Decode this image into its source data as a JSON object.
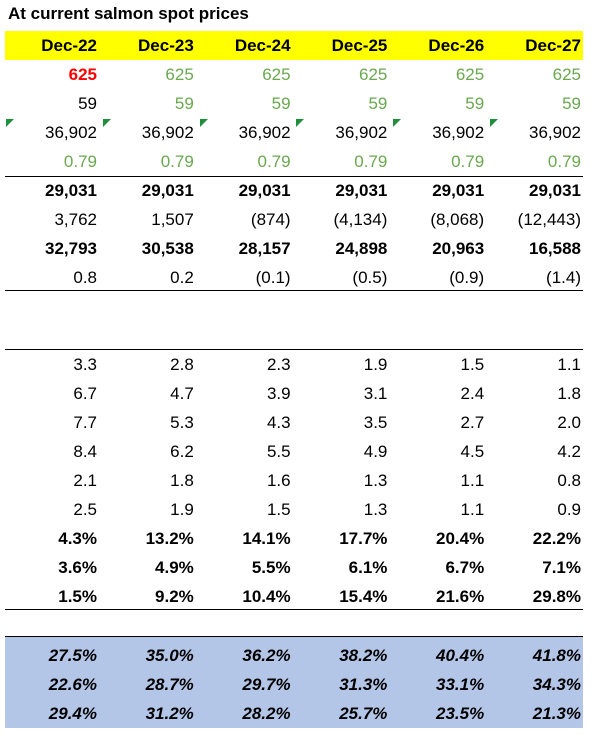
{
  "title": "At current salmon spot prices",
  "header": [
    "Dec-22",
    "Dec-23",
    "Dec-24",
    "Dec-25",
    "Dec-26",
    "Dec-27"
  ],
  "sections": [
    {
      "rows": [
        [
          "625",
          "625",
          "625",
          "625",
          "625",
          "625"
        ],
        [
          "59",
          "59",
          "59",
          "59",
          "59",
          "59"
        ],
        [
          "36,902",
          "36,902",
          "36,902",
          "36,902",
          "36,902",
          "36,902"
        ],
        [
          "0.79",
          "0.79",
          "0.79",
          "0.79",
          "0.79",
          "0.79"
        ]
      ]
    },
    {
      "rows": [
        [
          "29,031",
          "29,031",
          "29,031",
          "29,031",
          "29,031",
          "29,031"
        ],
        [
          "3,762",
          "1,507",
          "(874)",
          "(4,134)",
          "(8,068)",
          "(12,443)"
        ],
        [
          "32,793",
          "30,538",
          "28,157",
          "24,898",
          "20,963",
          "16,588"
        ],
        [
          "0.8",
          "0.2",
          "(0.1)",
          "(0.5)",
          "(0.9)",
          "(1.4)"
        ]
      ]
    },
    {
      "rows": [
        [
          "3.3",
          "2.8",
          "2.3",
          "1.9",
          "1.5",
          "1.1"
        ],
        [
          "6.7",
          "4.7",
          "3.9",
          "3.1",
          "2.4",
          "1.8"
        ],
        [
          "7.7",
          "5.3",
          "4.3",
          "3.5",
          "2.7",
          "2.0"
        ],
        [
          "8.4",
          "6.2",
          "5.5",
          "4.9",
          "4.5",
          "4.2"
        ],
        [
          "2.1",
          "1.8",
          "1.6",
          "1.3",
          "1.1",
          "0.8"
        ],
        [
          "2.5",
          "1.9",
          "1.5",
          "1.3",
          "1.1",
          "0.9"
        ],
        [
          "4.3%",
          "13.2%",
          "14.1%",
          "17.7%",
          "20.4%",
          "22.2%"
        ],
        [
          "3.6%",
          "4.9%",
          "5.5%",
          "6.1%",
          "6.7%",
          "7.1%"
        ],
        [
          "1.5%",
          "9.2%",
          "10.4%",
          "15.4%",
          "21.6%",
          "29.8%"
        ]
      ]
    },
    {
      "rows": [
        [
          "27.5%",
          "35.0%",
          "36.2%",
          "38.2%",
          "40.4%",
          "41.8%"
        ],
        [
          "22.6%",
          "28.7%",
          "29.7%",
          "31.3%",
          "33.1%",
          "34.3%"
        ],
        [
          "29.4%",
          "31.2%",
          "28.2%",
          "25.7%",
          "23.5%",
          "21.3%"
        ]
      ]
    }
  ]
}
